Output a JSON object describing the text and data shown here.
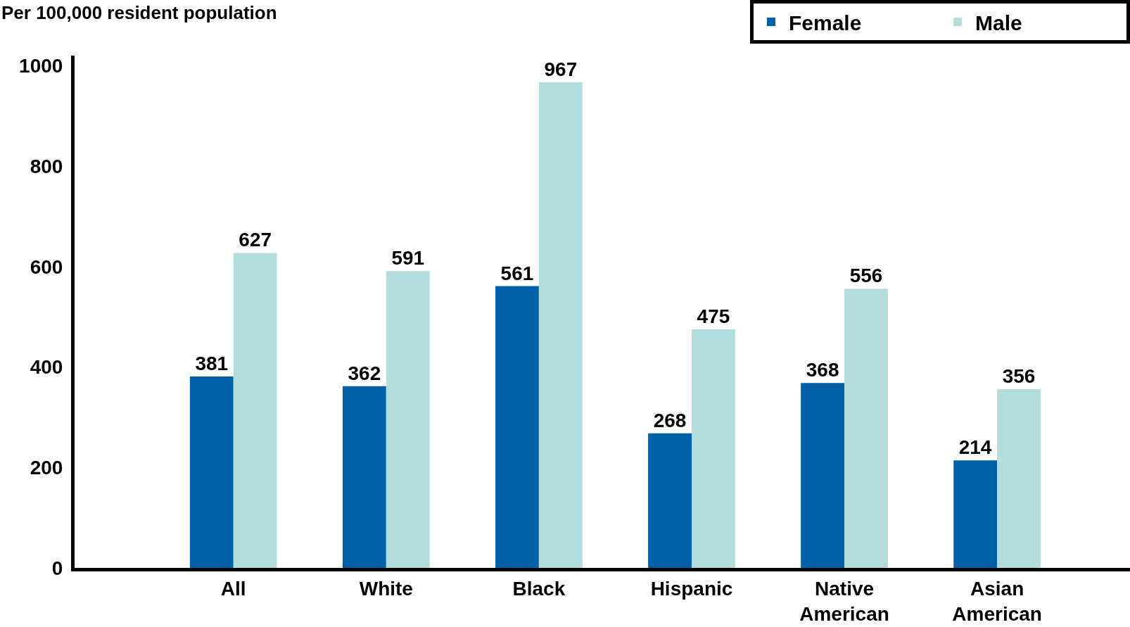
{
  "chart_data": {
    "type": "bar",
    "ylabel": "Per 100,000 resident population",
    "categories": [
      "All",
      "White",
      "Black",
      "Hispanic",
      "Native American",
      "Asian American"
    ],
    "series": [
      {
        "name": "Female",
        "color": "#0060a8",
        "values": [
          381,
          362,
          561,
          268,
          368,
          214
        ]
      },
      {
        "name": "Male",
        "color": "#b3dddc",
        "values": [
          627,
          591,
          967,
          475,
          556,
          356
        ]
      }
    ],
    "ylim": [
      0,
      1020
    ],
    "yticks": [
      0,
      200,
      400,
      600,
      800,
      1000
    ],
    "data_labels": true,
    "grid": false,
    "legend": "top right"
  }
}
